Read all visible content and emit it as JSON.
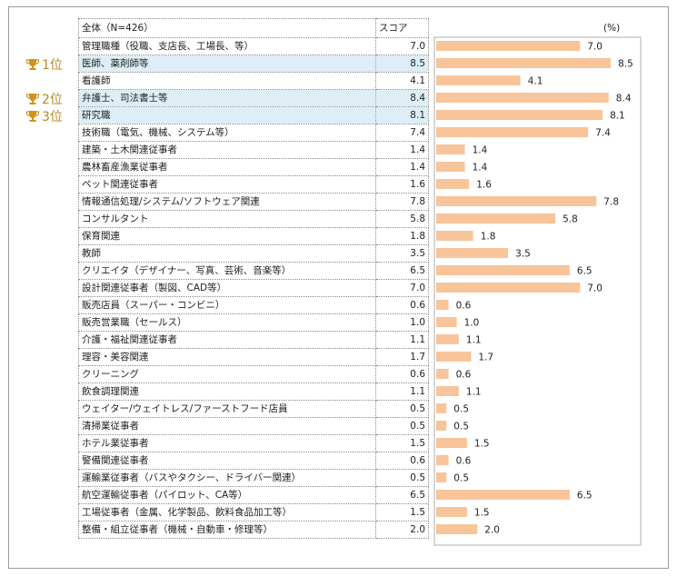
{
  "header": {
    "category_label": "全体（N=426）",
    "score_label": "スコア",
    "unit_label": "(%)"
  },
  "rank_badges": [
    {
      "label": "1位",
      "row": 1
    },
    {
      "label": "2位",
      "row": 3
    },
    {
      "label": "3位",
      "row": 4
    }
  ],
  "colors": {
    "bar": "#f8c49a",
    "highlight_row": "#deeef6",
    "trophy": "#c9961f"
  },
  "chart_data": {
    "type": "bar",
    "orientation": "horizontal",
    "title": "",
    "xlabel": "",
    "ylabel": "スコア",
    "unit": "(%)",
    "xlim": [
      0,
      10
    ],
    "highlighted_rows": [
      1,
      3,
      4
    ],
    "categories": [
      "管理職種（役職、支店長、工場長、等）",
      "医師、薬剤師等",
      "看護師",
      "弁護士、司法書士等",
      "研究職",
      "技術職（電気、機械、システム等）",
      "建築・土木関連従事者",
      "農林畜産漁業従事者",
      "ペット関連従事者",
      "情報通信処理/システム/ソフトウェア関連",
      "コンサルタント",
      "保育関連",
      "教師",
      "クリエイタ（デザイナー、写真、芸術、音楽等）",
      "設計関連従事者（製図、CAD等）",
      "販売店員（スーパー・コンビニ）",
      "販売営業職（セールス）",
      "介護・福祉関連従事者",
      "理容・美容関連",
      "クリーニング",
      "飲食調理関連",
      "ウェイター/ウェイトレス/ファーストフード店員",
      "清掃業従事者",
      "ホテル業従事者",
      "警備関連従事者",
      "運輸業従事者（バスやタクシー、ドライバー関連）",
      "航空運輸従事者（パイロット、CA等）",
      "工場従事者（金属、化学製品、飲料食品加工等）",
      "整備・組立従事者（機械・自動車・修理等）"
    ],
    "values": [
      7.0,
      8.5,
      4.1,
      8.4,
      8.1,
      7.4,
      1.4,
      1.4,
      1.6,
      7.8,
      5.8,
      1.8,
      3.5,
      6.5,
      7.0,
      0.6,
      1.0,
      1.1,
      1.7,
      0.6,
      1.1,
      0.5,
      0.5,
      1.5,
      0.6,
      0.5,
      6.5,
      1.5,
      2.0
    ],
    "value_labels": [
      "7.0",
      "8.5",
      "4.1",
      "8.4",
      "8.1",
      "7.4",
      "1.4",
      "1.4",
      "1.6",
      "7.8",
      "5.8",
      "1.8",
      "3.5",
      "6.5",
      "7.0",
      "0.6",
      "1.0",
      "1.1",
      "1.7",
      "0.6",
      "1.1",
      "0.5",
      "0.5",
      "1.5",
      "0.6",
      "0.5",
      "6.5",
      "1.5",
      "2.0"
    ]
  }
}
